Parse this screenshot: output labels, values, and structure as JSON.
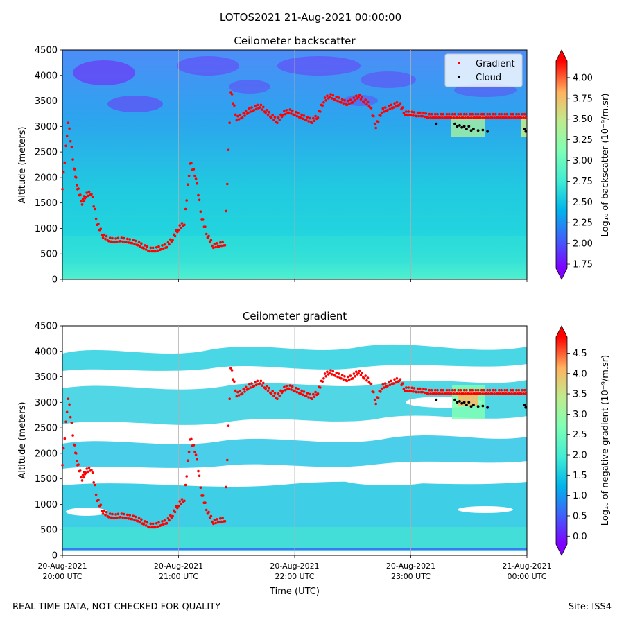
{
  "figure_title": "LOTOS2021 21-Aug-2021 00:00:00",
  "footer": {
    "left": "REAL TIME DATA, NOT CHECKED FOR QUALITY",
    "right": "Site: ISS4"
  },
  "colors": {
    "gradient_marker": "#ff0000",
    "cloud_marker": "#000000",
    "colormap": [
      "#7f00ff",
      "#3f61fa",
      "#00b4eb",
      "#40ecd4",
      "#80ffb4",
      "#c0eb8d",
      "#ffb360",
      "#ff0000"
    ]
  },
  "chart_data": [
    {
      "type": "heatmap",
      "title": "Ceilometer backscatter",
      "xlabel": "",
      "ylabel": "Altitude (meters)",
      "ylim": [
        0,
        4500
      ],
      "yticks": [
        "0",
        "500",
        "1000",
        "1500",
        "2000",
        "2500",
        "3000",
        "3500",
        "4000",
        "4500"
      ],
      "xlim_hours": [
        20,
        24
      ],
      "grid_hours": [
        21,
        22,
        23
      ],
      "colorbar": {
        "label": "Log₁₀ of backscatter (10⁻⁹/m.sr)",
        "range": [
          1.7,
          4.2
        ],
        "ticks": [
          "1.75",
          "2.00",
          "2.25",
          "2.50",
          "2.75",
          "3.00",
          "3.25",
          "3.50",
          "3.75",
          "4.00"
        ]
      },
      "legend": {
        "location": "top-right",
        "entries": [
          "Gradient",
          "Cloud"
        ]
      }
    },
    {
      "type": "heatmap",
      "title": "Ceilometer gradient",
      "xlabel": "Time (UTC)",
      "ylabel": "Altitude (meters)",
      "ylim": [
        0,
        4500
      ],
      "yticks": [
        "0",
        "500",
        "1000",
        "1500",
        "2000",
        "2500",
        "3000",
        "3500",
        "4000",
        "4500"
      ],
      "xlim_hours": [
        20,
        24
      ],
      "grid_hours": [
        21,
        22,
        23
      ],
      "xticks": [
        {
          "date": "20-Aug-2021",
          "time": "20:00 UTC"
        },
        {
          "date": "20-Aug-2021",
          "time": "21:00 UTC"
        },
        {
          "date": "20-Aug-2021",
          "time": "22:00 UTC"
        },
        {
          "date": "20-Aug-2021",
          "time": "23:00 UTC"
        },
        {
          "date": "21-Aug-2021",
          "time": "00:00 UTC"
        }
      ],
      "colorbar": {
        "label": "Log₁₀ of negative gradient (10⁻⁹/m.sr)",
        "range": [
          -0.2,
          4.9
        ],
        "ticks": [
          "0.0",
          "0.5",
          "1.0",
          "1.5",
          "2.0",
          "2.5",
          "3.0",
          "3.5",
          "4.0",
          "4.5"
        ]
      }
    }
  ],
  "gradient_series": {
    "hour": [
      20.0,
      20.05,
      20.1,
      20.13,
      20.17,
      20.2,
      20.25,
      20.3,
      20.35,
      20.4,
      20.45,
      20.5,
      20.55,
      20.6,
      20.65,
      20.7,
      20.75,
      20.8,
      20.85,
      20.9,
      20.95,
      21.0,
      21.05,
      21.1,
      21.15,
      21.2,
      21.25,
      21.3,
      21.35,
      21.4,
      21.45,
      21.5,
      21.55,
      21.6,
      21.65,
      21.7,
      21.75,
      21.8,
      21.85,
      21.9,
      21.95,
      22.0,
      22.05,
      22.1,
      22.15,
      22.2,
      22.25,
      22.3,
      22.35,
      22.4,
      22.45,
      22.5,
      22.55,
      22.6,
      22.65,
      22.7,
      22.75,
      22.8,
      22.85,
      22.9,
      22.95,
      23.0,
      23.05,
      23.1,
      23.15,
      23.2,
      23.25,
      23.3,
      23.35,
      23.4,
      23.45,
      23.5,
      23.55,
      23.6,
      23.65,
      23.7,
      23.75,
      23.8,
      23.85,
      23.9,
      23.95,
      24.0
    ],
    "altitude_m": [
      1800,
      3100,
      2200,
      1800,
      1500,
      1650,
      1700,
      1100,
      850,
      780,
      760,
      780,
      760,
      740,
      700,
      640,
      580,
      580,
      620,
      660,
      800,
      1000,
      1100,
      2300,
      2000,
      1200,
      850,
      650,
      680,
      700,
      3700,
      3150,
      3200,
      3300,
      3350,
      3400,
      3300,
      3200,
      3100,
      3250,
      3300,
      3250,
      3200,
      3150,
      3100,
      3200,
      3500,
      3600,
      3550,
      3500,
      3450,
      3500,
      3600,
      3500,
      3400,
      3000,
      3300,
      3350,
      3400,
      3450,
      3250,
      3250,
      3230,
      3230,
      3200,
      3200,
      3200,
      3200,
      3200,
      3200,
      3200,
      3200,
      3200,
      3200,
      3200,
      3200,
      3200,
      3200,
      3200,
      3200,
      3200,
      3200
    ]
  },
  "cloud_series": {
    "hour": [
      23.22,
      23.38,
      23.4,
      23.42,
      23.44,
      23.46,
      23.48,
      23.5,
      23.52,
      23.54,
      23.58,
      23.62,
      23.66,
      23.98,
      23.99
    ],
    "altitude_m": [
      3050,
      3050,
      3000,
      3020,
      2980,
      3000,
      2950,
      3000,
      2920,
      2950,
      2920,
      2930,
      2900,
      2950,
      2900
    ]
  }
}
